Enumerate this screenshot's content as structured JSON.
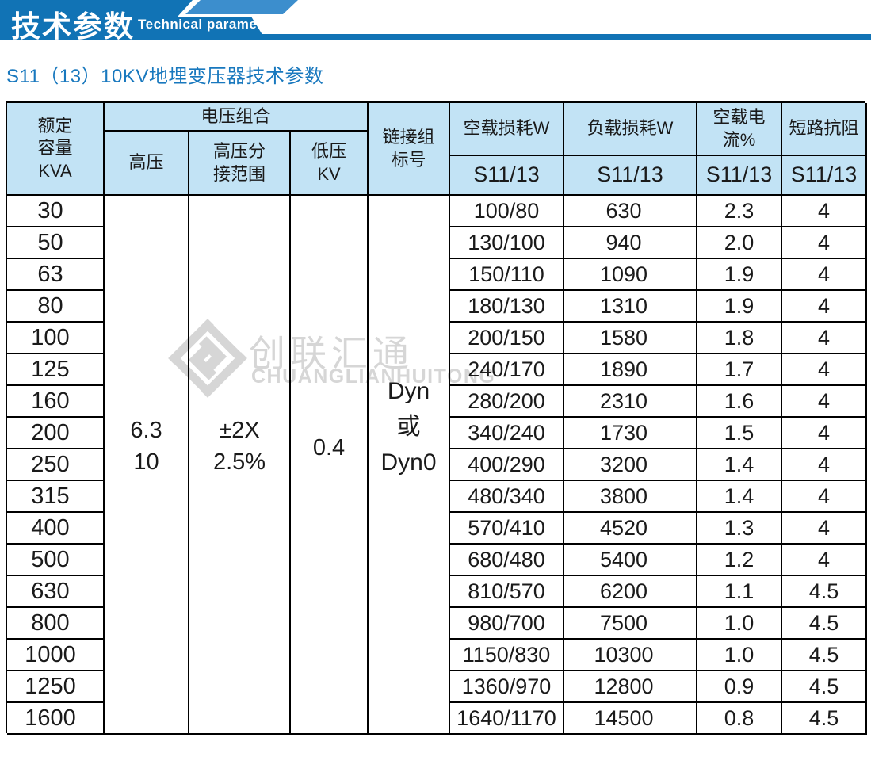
{
  "banner": {
    "title_zh": "技术参数",
    "title_en": "Technical parameter"
  },
  "page_title": "S11（13）10KV地埋变压器技术参数",
  "colors": {
    "banner_blue": "#1173b5",
    "banner_light_blue": "#3c8ecd",
    "title_blue": "#1878be",
    "header_bg": "#c2e3f5",
    "border": "#000000",
    "watermark_gray": "#d6d6d6"
  },
  "watermark": {
    "logo_icon": "diamond-chain-logo",
    "text_zh": "创联汇通",
    "text_en": "CHUANGLIANHUITONG"
  },
  "table": {
    "headers": {
      "rated_capacity": "额定\n容量\nKVA",
      "voltage_combo": "电压组合",
      "high_voltage": "高压",
      "hv_tap_range": "高压分\n接范围",
      "low_voltage": "低压\nKV",
      "vector_group": "链接组\n标号",
      "no_load_loss": "空载损耗W",
      "load_loss": "负载损耗W",
      "no_load_current": "空载电流%",
      "impedance": "短路抗阻",
      "sub_no_load_loss": "S11/13",
      "sub_load_loss": "S11/13",
      "sub_no_load_current": "S11/13",
      "sub_impedance": "S11/13"
    },
    "merged_values": {
      "high_voltage": "6.3\n10",
      "hv_tap_range": "±2X\n2.5%",
      "low_voltage": "0.4",
      "vector_group": "Dyn\n或\nDyn0"
    },
    "rows": [
      {
        "capacity": "30",
        "no_load_loss": "100/80",
        "load_loss": "630",
        "no_load_current": "2.3",
        "impedance": "4"
      },
      {
        "capacity": "50",
        "no_load_loss": "130/100",
        "load_loss": "940",
        "no_load_current": "2.0",
        "impedance": "4"
      },
      {
        "capacity": "63",
        "no_load_loss": "150/110",
        "load_loss": "1090",
        "no_load_current": "1.9",
        "impedance": "4"
      },
      {
        "capacity": "80",
        "no_load_loss": "180/130",
        "load_loss": "1310",
        "no_load_current": "1.9",
        "impedance": "4"
      },
      {
        "capacity": "100",
        "no_load_loss": "200/150",
        "load_loss": "1580",
        "no_load_current": "1.8",
        "impedance": "4"
      },
      {
        "capacity": "125",
        "no_load_loss": "240/170",
        "load_loss": "1890",
        "no_load_current": "1.7",
        "impedance": "4"
      },
      {
        "capacity": "160",
        "no_load_loss": "280/200",
        "load_loss": "2310",
        "no_load_current": "1.6",
        "impedance": "4"
      },
      {
        "capacity": "200",
        "no_load_loss": "340/240",
        "load_loss": "1730",
        "no_load_current": "1.5",
        "impedance": "4"
      },
      {
        "capacity": "250",
        "no_load_loss": "400/290",
        "load_loss": "3200",
        "no_load_current": "1.4",
        "impedance": "4"
      },
      {
        "capacity": "315",
        "no_load_loss": "480/340",
        "load_loss": "3800",
        "no_load_current": "1.4",
        "impedance": "4"
      },
      {
        "capacity": "400",
        "no_load_loss": "570/410",
        "load_loss": "4520",
        "no_load_current": "1.3",
        "impedance": "4"
      },
      {
        "capacity": "500",
        "no_load_loss": "680/480",
        "load_loss": "5400",
        "no_load_current": "1.2",
        "impedance": "4"
      },
      {
        "capacity": "630",
        "no_load_loss": "810/570",
        "load_loss": "6200",
        "no_load_current": "1.1",
        "impedance": "4.5"
      },
      {
        "capacity": "800",
        "no_load_loss": "980/700",
        "load_loss": "7500",
        "no_load_current": "1.0",
        "impedance": "4.5"
      },
      {
        "capacity": "1000",
        "no_load_loss": "1150/830",
        "load_loss": "10300",
        "no_load_current": "1.0",
        "impedance": "4.5"
      },
      {
        "capacity": "1250",
        "no_load_loss": "1360/970",
        "load_loss": "12800",
        "no_load_current": "0.9",
        "impedance": "4.5"
      },
      {
        "capacity": "1600",
        "no_load_loss": "1640/1170",
        "load_loss": "14500",
        "no_load_current": "0.8",
        "impedance": "4.5"
      }
    ]
  }
}
